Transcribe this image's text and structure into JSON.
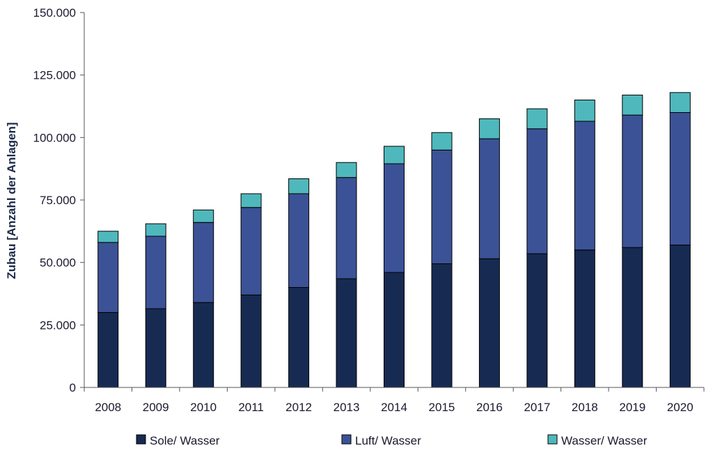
{
  "chart_data": {
    "type": "bar",
    "stacked": true,
    "title": "",
    "xlabel": "",
    "ylabel": "Zubau [Anzahl der Anlagen]",
    "ylim": [
      0,
      150000
    ],
    "yticks": [
      0,
      25000,
      50000,
      75000,
      100000,
      125000,
      150000
    ],
    "ytick_labels": [
      "0",
      "25.000",
      "50.000",
      "75.000",
      "100.000",
      "125.000",
      "150.000"
    ],
    "categories": [
      "2008",
      "2009",
      "2010",
      "2011",
      "2012",
      "2013",
      "2014",
      "2015",
      "2016",
      "2017",
      "2018",
      "2019",
      "2020"
    ],
    "grid": false,
    "legend_position": "bottom",
    "series": [
      {
        "name": "Sole/ Wasser",
        "color": "#172a52",
        "values": [
          30000,
          31500,
          34000,
          37000,
          40000,
          43500,
          46000,
          49500,
          51500,
          53500,
          55000,
          56000,
          57000
        ]
      },
      {
        "name": "Luft/ Wasser",
        "color": "#3b5296",
        "values": [
          28000,
          29000,
          32000,
          35000,
          37500,
          40500,
          43500,
          45500,
          48000,
          50000,
          51500,
          53000,
          53000
        ]
      },
      {
        "name": "Wasser/ Wasser",
        "color": "#4fb8bc",
        "values": [
          4500,
          5000,
          5000,
          5500,
          6000,
          6000,
          7000,
          7000,
          8000,
          8000,
          8500,
          8000,
          8000
        ]
      }
    ]
  }
}
